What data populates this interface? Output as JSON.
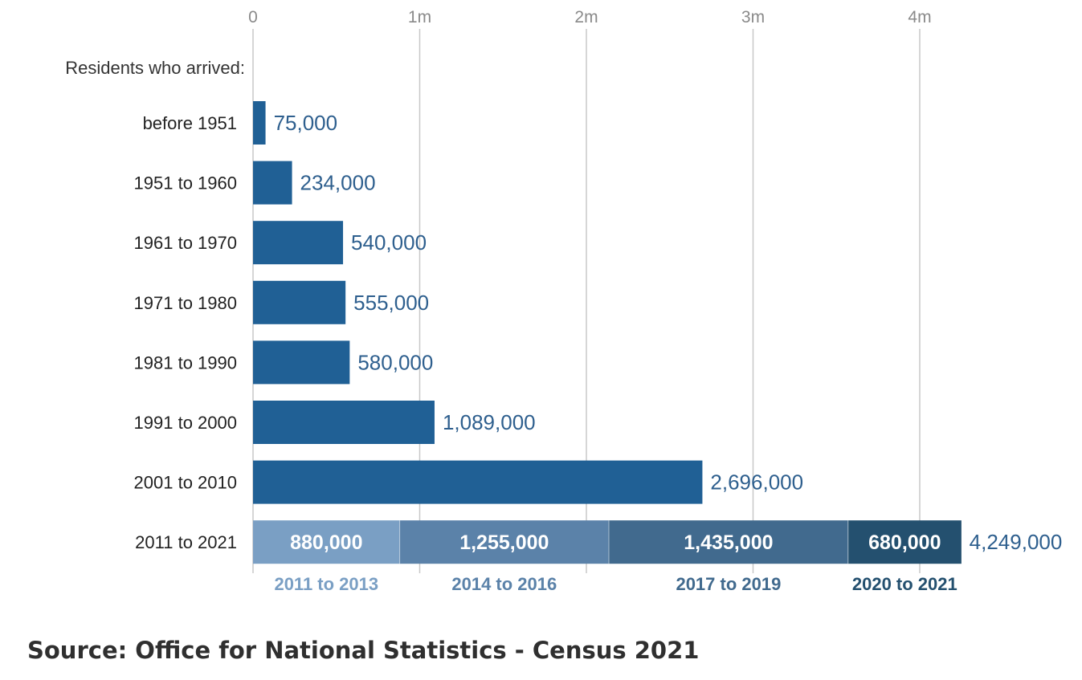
{
  "chart_data": {
    "type": "bar",
    "orientation": "horizontal",
    "heading": "Residents who arrived:",
    "x_ticks": [
      {
        "value": 0,
        "label": "0"
      },
      {
        "value": 1000000,
        "label": "1m"
      },
      {
        "value": 2000000,
        "label": "2m"
      },
      {
        "value": 3000000,
        "label": "3m"
      },
      {
        "value": 4000000,
        "label": "4m"
      }
    ],
    "xlim": [
      0,
      4249000
    ],
    "grid": true,
    "categories": [
      "before 1951",
      "1951 to 1960",
      "1961 to 1970",
      "1971 to 1980",
      "1981 to 1990",
      "1991 to 2000",
      "2001 to 2010",
      "2011 to 2021"
    ],
    "values": [
      75000,
      234000,
      540000,
      555000,
      580000,
      1089000,
      2696000,
      4249000
    ],
    "value_labels": [
      "75,000",
      "234,000",
      "540,000",
      "555,000",
      "580,000",
      "1,089,000",
      "2,696,000",
      "4,249,000"
    ],
    "stacked_breakdown": {
      "category": "2011 to 2021",
      "segments": [
        {
          "name": "2011 to 2013",
          "value": 880000,
          "label": "880,000",
          "color": "#7a9fc4"
        },
        {
          "name": "2014 to 2016",
          "value": 1255000,
          "label": "1,255,000",
          "color": "#5b82a9"
        },
        {
          "name": "2017 to 2019",
          "value": 1435000,
          "label": "1,435,000",
          "color": "#416a8e"
        },
        {
          "name": "2020 to 2021",
          "value": 680000,
          "label": "680,000",
          "color": "#24506f"
        }
      ]
    },
    "bar_color": "#206095"
  },
  "source": "Source: Office for National Statistics - Census 2021"
}
